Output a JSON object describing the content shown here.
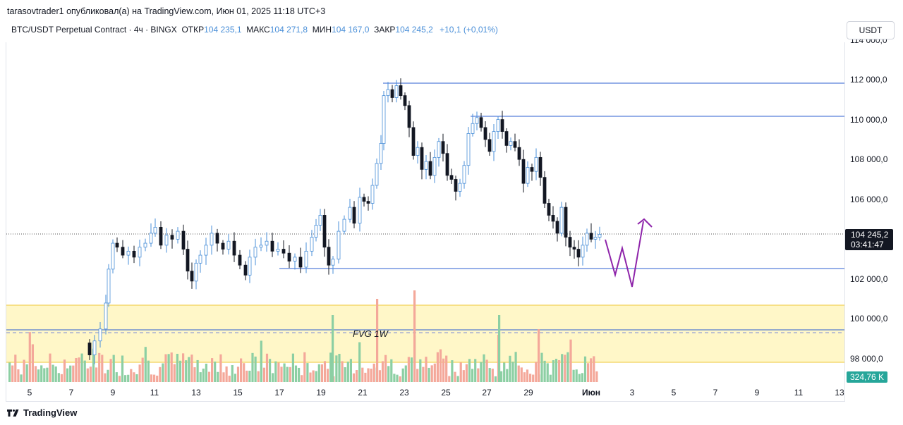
{
  "header": {
    "publisher_line": "tarasovtrader1 опубликовал(а) на TradingView.com, Июн 01, 2025 11:18 UTC+3",
    "symbol": "BTC/USDT Perpetual Contract · 4ч · BINGX",
    "open_label": "ОТКР",
    "open_value": "104 235,1",
    "high_label": "МАКС",
    "high_value": "104 271,8",
    "low_label": "МИН",
    "low_value": "104 167,0",
    "close_label": "ЗАКР",
    "close_value": "104 245,2",
    "change": "+10,1 (+0,01%)"
  },
  "currency_button": "USDT",
  "price_axis": {
    "labels": [
      "114 000,0",
      "112 000,0",
      "110 000,0",
      "108 000,0",
      "106 000,0",
      "104 000,0",
      "102 000,0",
      "100 000,0",
      "98 000,0"
    ],
    "current_price": "104 245,2",
    "countdown": "03:41:47",
    "volume_value": "324,76 K"
  },
  "time_axis": {
    "labels": [
      "5",
      "7",
      "9",
      "11",
      "13",
      "15",
      "17",
      "19",
      "21",
      "23",
      "25",
      "27",
      "29",
      "Июн",
      "3",
      "5",
      "7",
      "9",
      "11",
      "13"
    ]
  },
  "annotations": {
    "fvg_label": "FVG 1W"
  },
  "colors": {
    "up": "#4a8fd8",
    "down": "#131722",
    "level_line": "#2e5fd1",
    "fvg_fill": "#fff7c8",
    "fvg_border": "#f2d25a",
    "projection": "#8e24aa",
    "vol_up": "#8ccfa3",
    "vol_down": "#f4a89a"
  },
  "footer": {
    "brand": "TradingView"
  }
}
